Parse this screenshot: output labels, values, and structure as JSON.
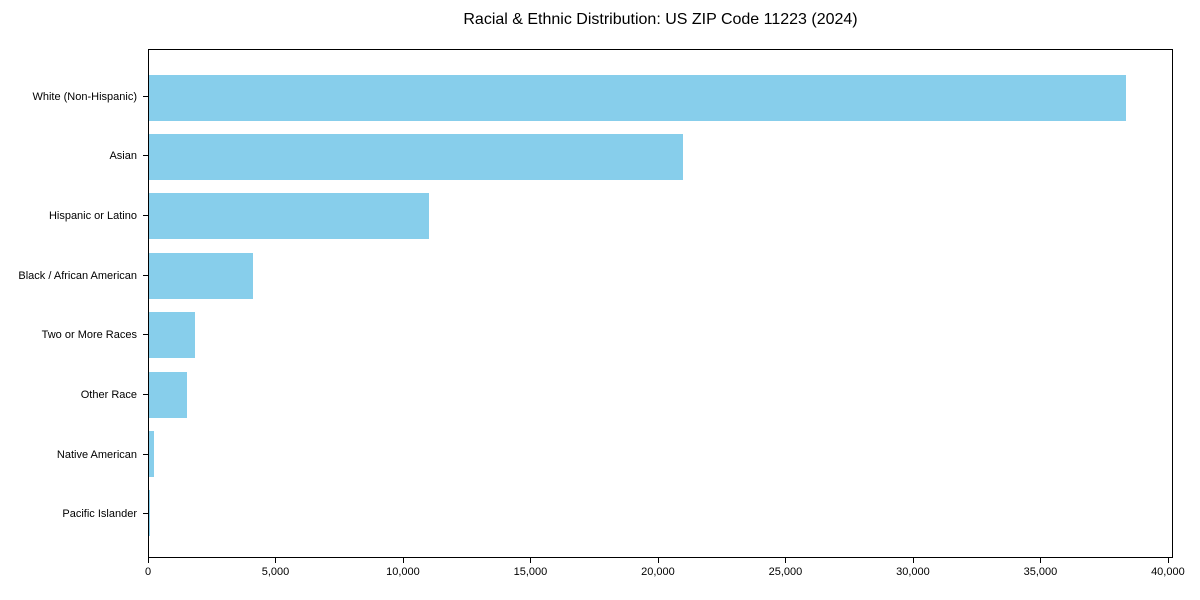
{
  "chart_data": {
    "type": "bar",
    "orientation": "horizontal",
    "title": "Racial & Ethnic Distribution: US ZIP Code 11223 (2024)",
    "categories": [
      "White (Non-Hispanic)",
      "Asian",
      "Hispanic or Latino",
      "Black / African American",
      "Two or More Races",
      "Other Race",
      "Native American",
      "Pacific Islander"
    ],
    "values": [
      38400,
      21000,
      11000,
      4100,
      1800,
      1500,
      180,
      20
    ],
    "bar_color": "#87CEEB",
    "xlabel": "",
    "ylabel": "",
    "xlim": [
      0,
      40200
    ],
    "xticks": [
      0,
      5000,
      10000,
      15000,
      20000,
      25000,
      30000,
      35000,
      40000
    ],
    "xtick_labels": [
      "0",
      "5,000",
      "10,000",
      "15,000",
      "20,000",
      "25,000",
      "30,000",
      "35,000",
      "40,000"
    ],
    "grid": false,
    "legend_position": "none"
  }
}
